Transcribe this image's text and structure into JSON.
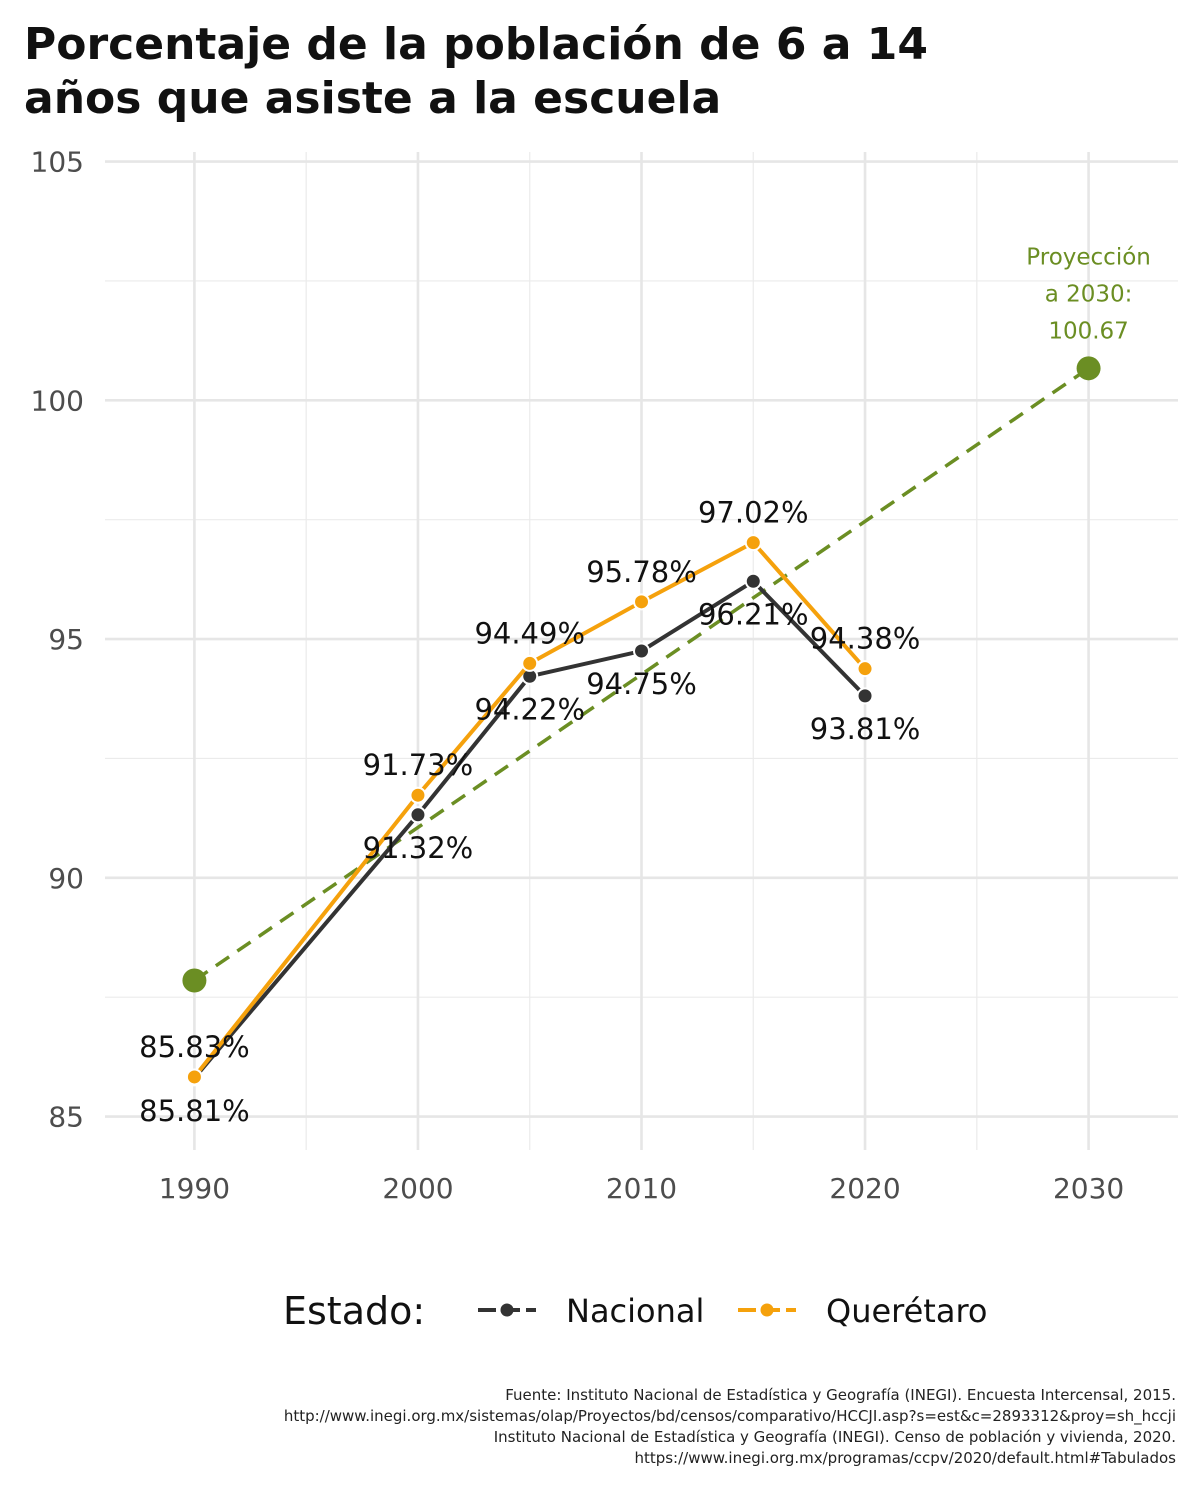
{
  "chart_data": {
    "type": "line",
    "title_lines": [
      "Porcentaje de la población de 6 a 14",
      "años que asiste a la escuela"
    ],
    "xlim": [
      1986,
      2034
    ],
    "ylim": [
      84.3,
      105.2
    ],
    "x_ticks": [
      1990,
      2000,
      2010,
      2020,
      2030
    ],
    "x_tick_labels": [
      "1990",
      "2000",
      "2010",
      "2020",
      "2030"
    ],
    "x_minor_ticks": [
      1995,
      2005,
      2015,
      2025
    ],
    "y_ticks": [
      85,
      90,
      95,
      100,
      105
    ],
    "y_tick_labels": [
      "85",
      "90",
      "95",
      "100",
      "105"
    ],
    "y_minor_ticks": [
      87.5,
      92.5,
      97.5,
      102.5
    ],
    "grid": true,
    "legend": {
      "title": "Estado:",
      "position": "bottom",
      "entries": [
        {
          "label": "Nacional",
          "color": "#333333"
        },
        {
          "label": "Querétaro",
          "color": "#F5A10C"
        }
      ]
    },
    "series": [
      {
        "name": "Nacional",
        "color": "#333333",
        "x": [
          1990,
          2000,
          2005,
          2010,
          2015,
          2020
        ],
        "y": [
          85.81,
          91.32,
          94.22,
          94.75,
          96.21,
          93.81
        ],
        "labels": [
          "85.81%",
          "91.32%",
          "94.22%",
          "94.75%",
          "96.21%",
          "93.81%"
        ]
      },
      {
        "name": "Querétaro",
        "color": "#F5A10C",
        "x": [
          1990,
          2000,
          2005,
          2010,
          2015,
          2020
        ],
        "y": [
          85.83,
          91.73,
          94.49,
          95.78,
          97.02,
          94.38
        ],
        "labels": [
          "85.83%",
          "91.73%",
          "94.49%",
          "95.78%",
          "97.02%",
          "94.38%"
        ]
      }
    ],
    "trend": {
      "color": "#6B8E23",
      "x": [
        1990,
        2030
      ],
      "y": [
        87.85,
        100.67
      ]
    },
    "annotation": {
      "lines": [
        "Proyección",
        "a 2030:",
        "100.67"
      ],
      "x": 2030,
      "y": 100.67,
      "color": "#6B8E23"
    },
    "caption_lines": [
      "Fuente: Instituto Nacional de Estadística y Geografía (INEGI). Encuesta Intercensal, 2015.",
      "http://www.inegi.org.mx/sistemas/olap/Proyectos/bd/censos/comparativo/HCCJI.asp?s=est&c=2893312&proy=sh_hccji",
      "Instituto Nacional de Estadística y Geografía (INEGI). Censo de población y vivienda, 2020.",
      "https://www.inegi.org.mx/programas/ccpv/2020/default.html#Tabulados"
    ]
  }
}
